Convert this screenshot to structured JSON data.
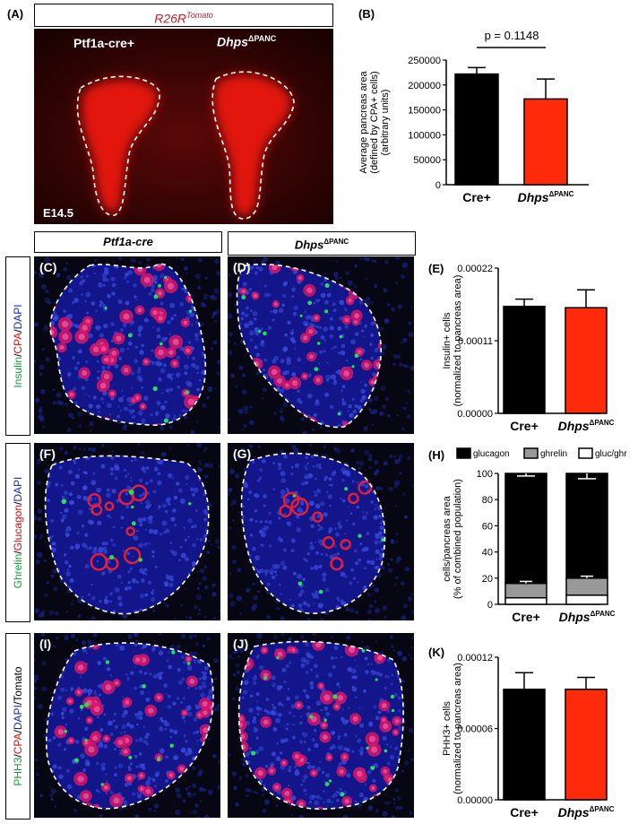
{
  "panel_letters": {
    "A": "(A)",
    "B": "(B)",
    "C": "(C)",
    "D": "(D)",
    "E": "(E)",
    "F": "(F)",
    "G": "(G)",
    "H": "(H)",
    "I": "(I)",
    "J": "(J)",
    "K": "(K)"
  },
  "panel_a": {
    "header_base": "R26R",
    "header_sup": "Tomato",
    "left_label": "Ptf1a-cre+",
    "right_label_base": "Dhps",
    "right_label_sup": "ΔPANC",
    "stage": "E14.5"
  },
  "column_headers": {
    "left": "Ptf1a-cre",
    "right_base": "Dhps",
    "right_sup": "ΔPANC"
  },
  "row_labels": {
    "row1": [
      {
        "text": "Insulin",
        "color": "#1a9a3a"
      },
      {
        "text": "/",
        "color": "#000000"
      },
      {
        "text": "CPA",
        "color": "#d01010"
      },
      {
        "text": "/",
        "color": "#000000"
      },
      {
        "text": "DAPI",
        "color": "#1a2ab0"
      }
    ],
    "row2": [
      {
        "text": "Ghrelin",
        "color": "#1a9a3a"
      },
      {
        "text": "/",
        "color": "#000000"
      },
      {
        "text": "Glucagon",
        "color": "#d01010"
      },
      {
        "text": "/",
        "color": "#000000"
      },
      {
        "text": "DAPI",
        "color": "#1a2ab0"
      }
    ],
    "row3": [
      {
        "text": "PHH3",
        "color": "#1a9a3a"
      },
      {
        "text": "/",
        "color": "#000000"
      },
      {
        "text": "CPA",
        "color": "#d01010"
      },
      {
        "text": "/",
        "color": "#000000"
      },
      {
        "text": "DAPI",
        "color": "#1a2ab0"
      },
      {
        "text": "/",
        "color": "#000000"
      },
      {
        "text": "Tomato",
        "color": "#000000"
      }
    ]
  },
  "colors": {
    "control": "#000000",
    "mutant": "#ff2a0a",
    "gluc": "#000000",
    "ghrelin": "#999999",
    "glucghr": "#ffffff"
  },
  "chart_data": [
    {
      "panel": "B",
      "type": "bar",
      "categories": [
        "Cre+",
        "Dhps"
      ],
      "category_sup": [
        "",
        "ΔPANC"
      ],
      "values": [
        222000,
        172000
      ],
      "errors": [
        13000,
        40000
      ],
      "ylabel": [
        "Average pancreas area",
        "(defined by CPA+ cells)",
        "(arbitrary units)"
      ],
      "ylim": [
        0,
        250000
      ],
      "yticks": [
        "0",
        "50000",
        "100000",
        "150000",
        "200000",
        "250000"
      ],
      "annotation": "p = 0.1148"
    },
    {
      "panel": "E",
      "type": "bar",
      "categories": [
        "Cre+",
        "Dhps"
      ],
      "category_sup": [
        "",
        "ΔPANC"
      ],
      "values": [
        0.000162,
        0.00016
      ],
      "errors": [
        1.1e-05,
        2.7e-05
      ],
      "ylabel": [
        "Insulin+ cells",
        "(normalized to pancreas area)"
      ],
      "ylim": [
        0,
        0.00022
      ],
      "yticks": [
        "0.00000",
        "0.00011",
        "0.00022"
      ]
    },
    {
      "panel": "H",
      "type": "bar",
      "stacked": true,
      "categories": [
        "Cre+",
        "Dhps"
      ],
      "category_sup": [
        "",
        "ΔPANC"
      ],
      "series": [
        {
          "name": "gluc/ghr",
          "values": [
            5,
            7
          ]
        },
        {
          "name": "ghrelin",
          "values": [
            11,
            13
          ]
        },
        {
          "name": "glucagon",
          "values": [
            84,
            80
          ]
        }
      ],
      "errors": [
        2,
        4
      ],
      "legend": [
        "glucagon",
        "ghrelin",
        "gluc/ghr"
      ],
      "ylabel": [
        "cells/pancreas area",
        "(% of combined population)"
      ],
      "ylim": [
        0,
        100
      ],
      "yticks": [
        "0",
        "20",
        "40",
        "60",
        "80",
        "100"
      ]
    },
    {
      "panel": "K",
      "type": "bar",
      "categories": [
        "Cre+",
        "Dhps"
      ],
      "category_sup": [
        "",
        "ΔPANC"
      ],
      "values": [
        9.3e-05,
        9.3e-05
      ],
      "errors": [
        1.4e-05,
        1e-05
      ],
      "ylabel": [
        "PHH3+ cells",
        "(normalized to pancreas area)"
      ],
      "ylim": [
        0,
        0.00012
      ],
      "yticks": [
        "0.00000",
        "0.00006",
        "0.00012"
      ]
    }
  ]
}
